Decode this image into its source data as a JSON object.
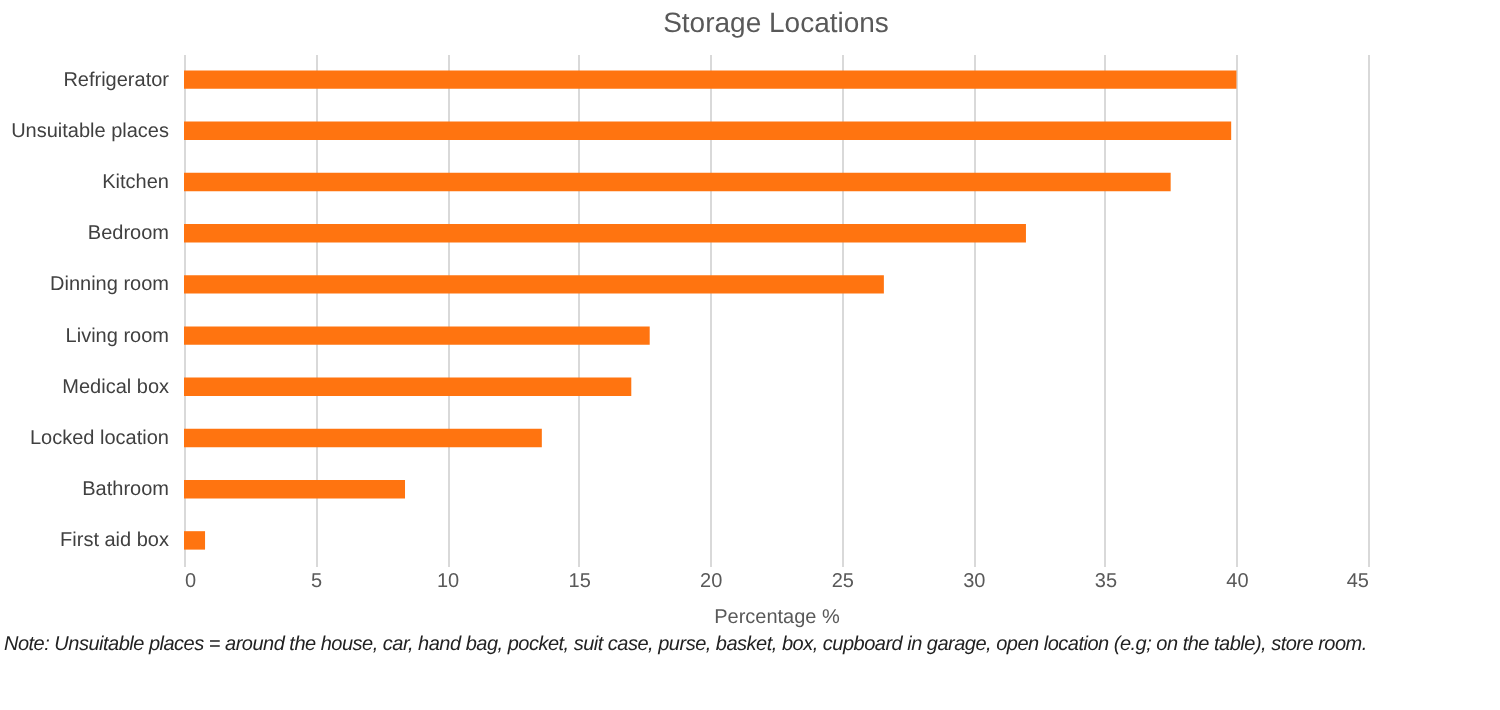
{
  "chart_data": {
    "type": "bar",
    "orientation": "horizontal",
    "title": "Storage Locations",
    "xlabel": "Percentage %",
    "categories": [
      "Refrigerator",
      "Unsuitable places",
      "Kitchen",
      "Bedroom",
      "Dinning room",
      "Living room",
      "Medical box",
      "Locked location",
      "Bathroom",
      "First aid box"
    ],
    "values": [
      40,
      39.8,
      37.5,
      32,
      26.6,
      17.7,
      17,
      13.6,
      8.4,
      0.8
    ],
    "color": "#ff7410",
    "xlim": [
      0,
      45
    ],
    "xticks": [
      0,
      5,
      10,
      15,
      20,
      25,
      30,
      35,
      40,
      45
    ],
    "grid": "x",
    "annotations": [
      "Note: Unsuitable places = around the house, car, hand bag, pocket, suit case, purse, basket, box, cupboard in garage, open location (e.g; on the table), store room."
    ]
  }
}
